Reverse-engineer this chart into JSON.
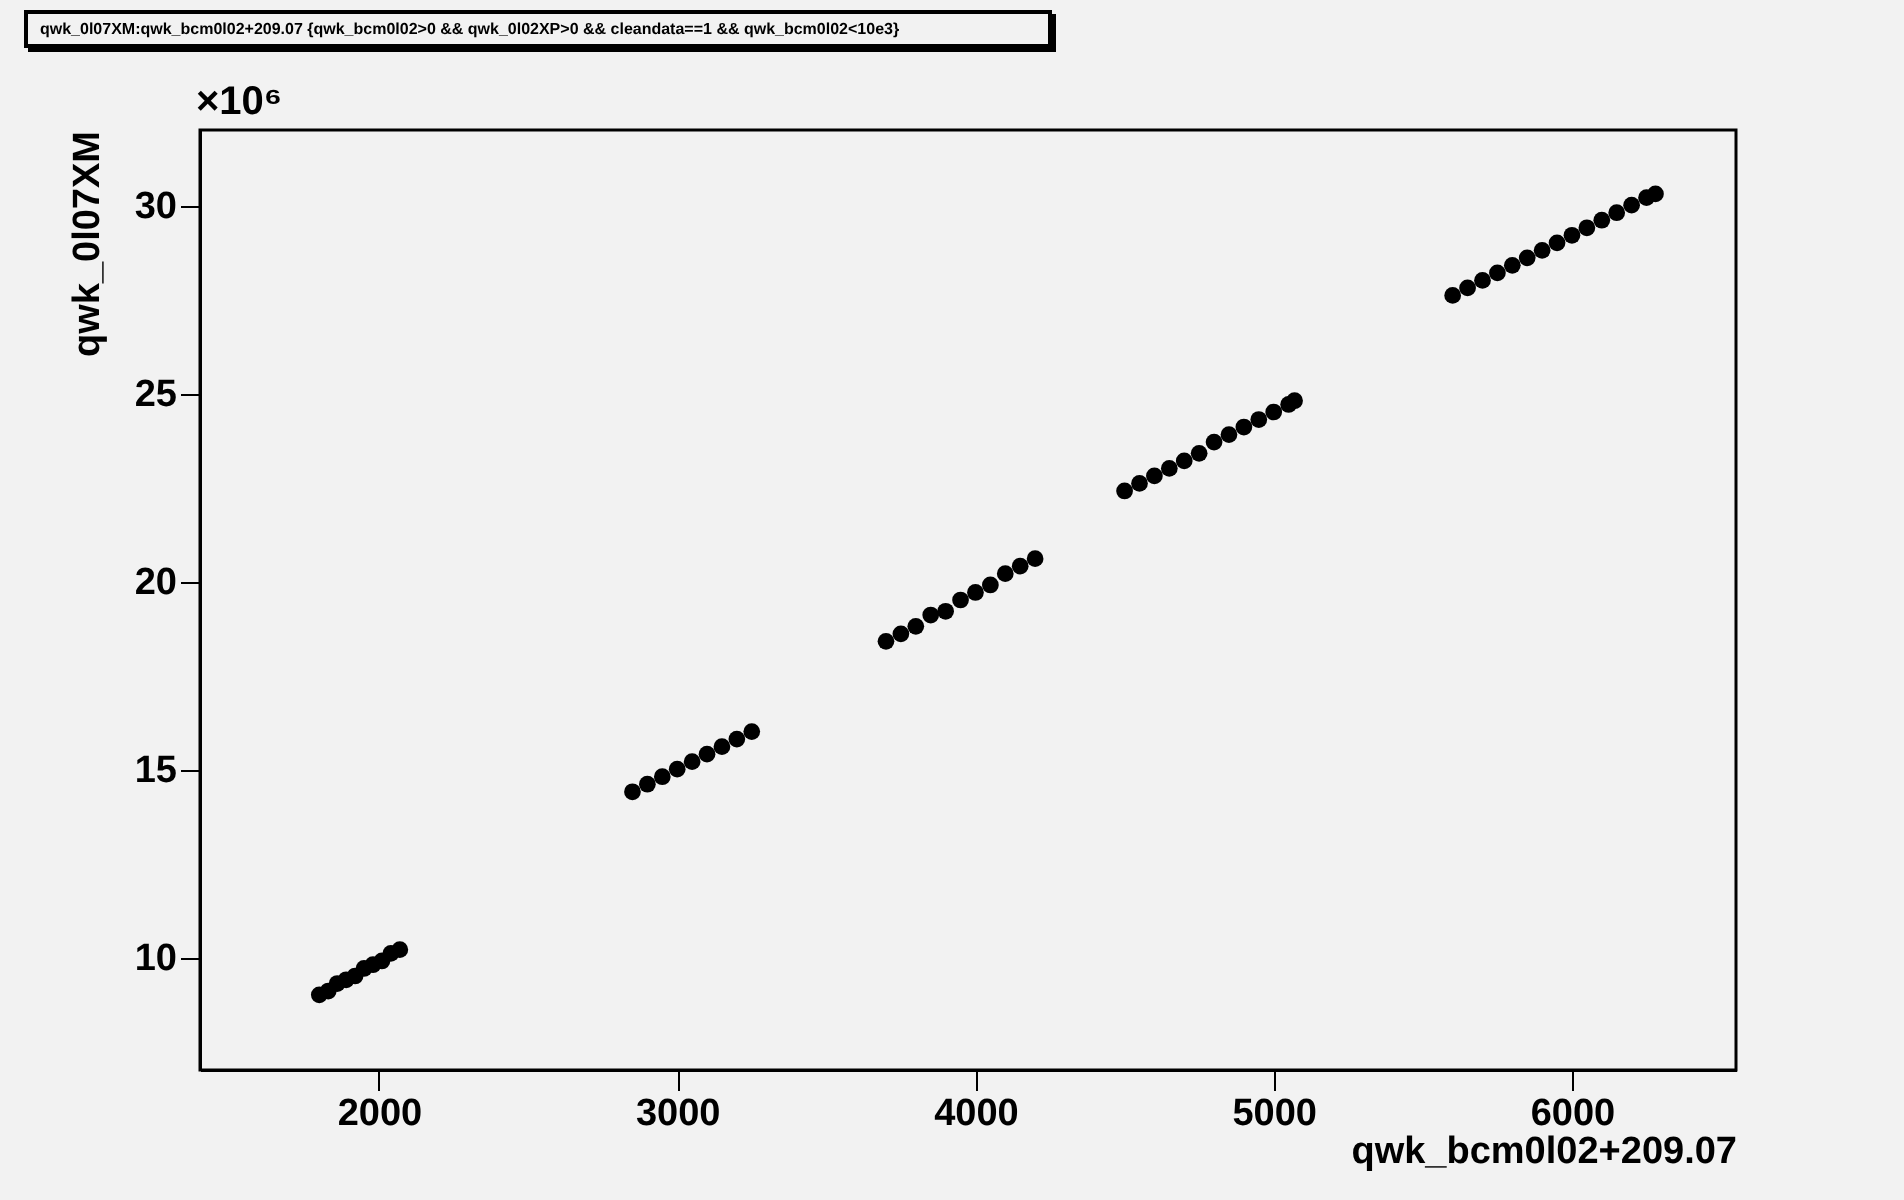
{
  "chart_data": {
    "type": "scatter",
    "title": "qwk_0l07XM:qwk_bcm0l02+209.07 {qwk_bcm0l02>0  && qwk_0l02XP>0 && cleandata==1 && qwk_bcm0l02<10e3}",
    "xlabel": "qwk_bcm0l02+209.07",
    "ylabel": "qwk_0l07XM",
    "annotations": [
      "×10⁶"
    ],
    "x": [
      1800,
      1830,
      1860,
      1890,
      1920,
      1950,
      1980,
      2010,
      2040,
      2070,
      2850,
      2900,
      2950,
      3000,
      3050,
      3100,
      3150,
      3200,
      3250,
      3700,
      3750,
      3800,
      3850,
      3900,
      3950,
      4000,
      4050,
      4100,
      4150,
      4200,
      4500,
      4550,
      4600,
      4650,
      4700,
      4750,
      4800,
      4850,
      4900,
      4950,
      5000,
      5050,
      5070,
      5600,
      5650,
      5700,
      5750,
      5800,
      5850,
      5900,
      5950,
      6000,
      6050,
      6100,
      6150,
      6200,
      6250,
      6280
    ],
    "series": [
      {
        "color": "#000000",
        "values": [
          9.0,
          9.1,
          9.3,
          9.4,
          9.5,
          9.7,
          9.8,
          9.9,
          10.1,
          10.2,
          14.4,
          14.6,
          14.8,
          15.0,
          15.2,
          15.4,
          15.6,
          15.8,
          16.0,
          18.4,
          18.6,
          18.8,
          19.1,
          19.2,
          19.5,
          19.7,
          19.9,
          20.2,
          20.4,
          20.6,
          22.4,
          22.6,
          22.8,
          23.0,
          23.2,
          23.4,
          23.7,
          23.9,
          24.1,
          24.3,
          24.5,
          24.7,
          24.8,
          27.6,
          27.8,
          28.0,
          28.2,
          28.4,
          28.6,
          28.8,
          29.0,
          29.2,
          29.4,
          29.6,
          29.8,
          30.0,
          30.2,
          30.3
        ]
      }
    ],
    "xlim": [
      1400,
      6550
    ],
    "xticks": [
      2000,
      3000,
      4000,
      5000,
      6000
    ],
    "ylim": [
      7,
      32
    ],
    "yticks": [
      10,
      15,
      20,
      25,
      30
    ],
    "marker": "circle",
    "grid": false,
    "legend": false
  }
}
